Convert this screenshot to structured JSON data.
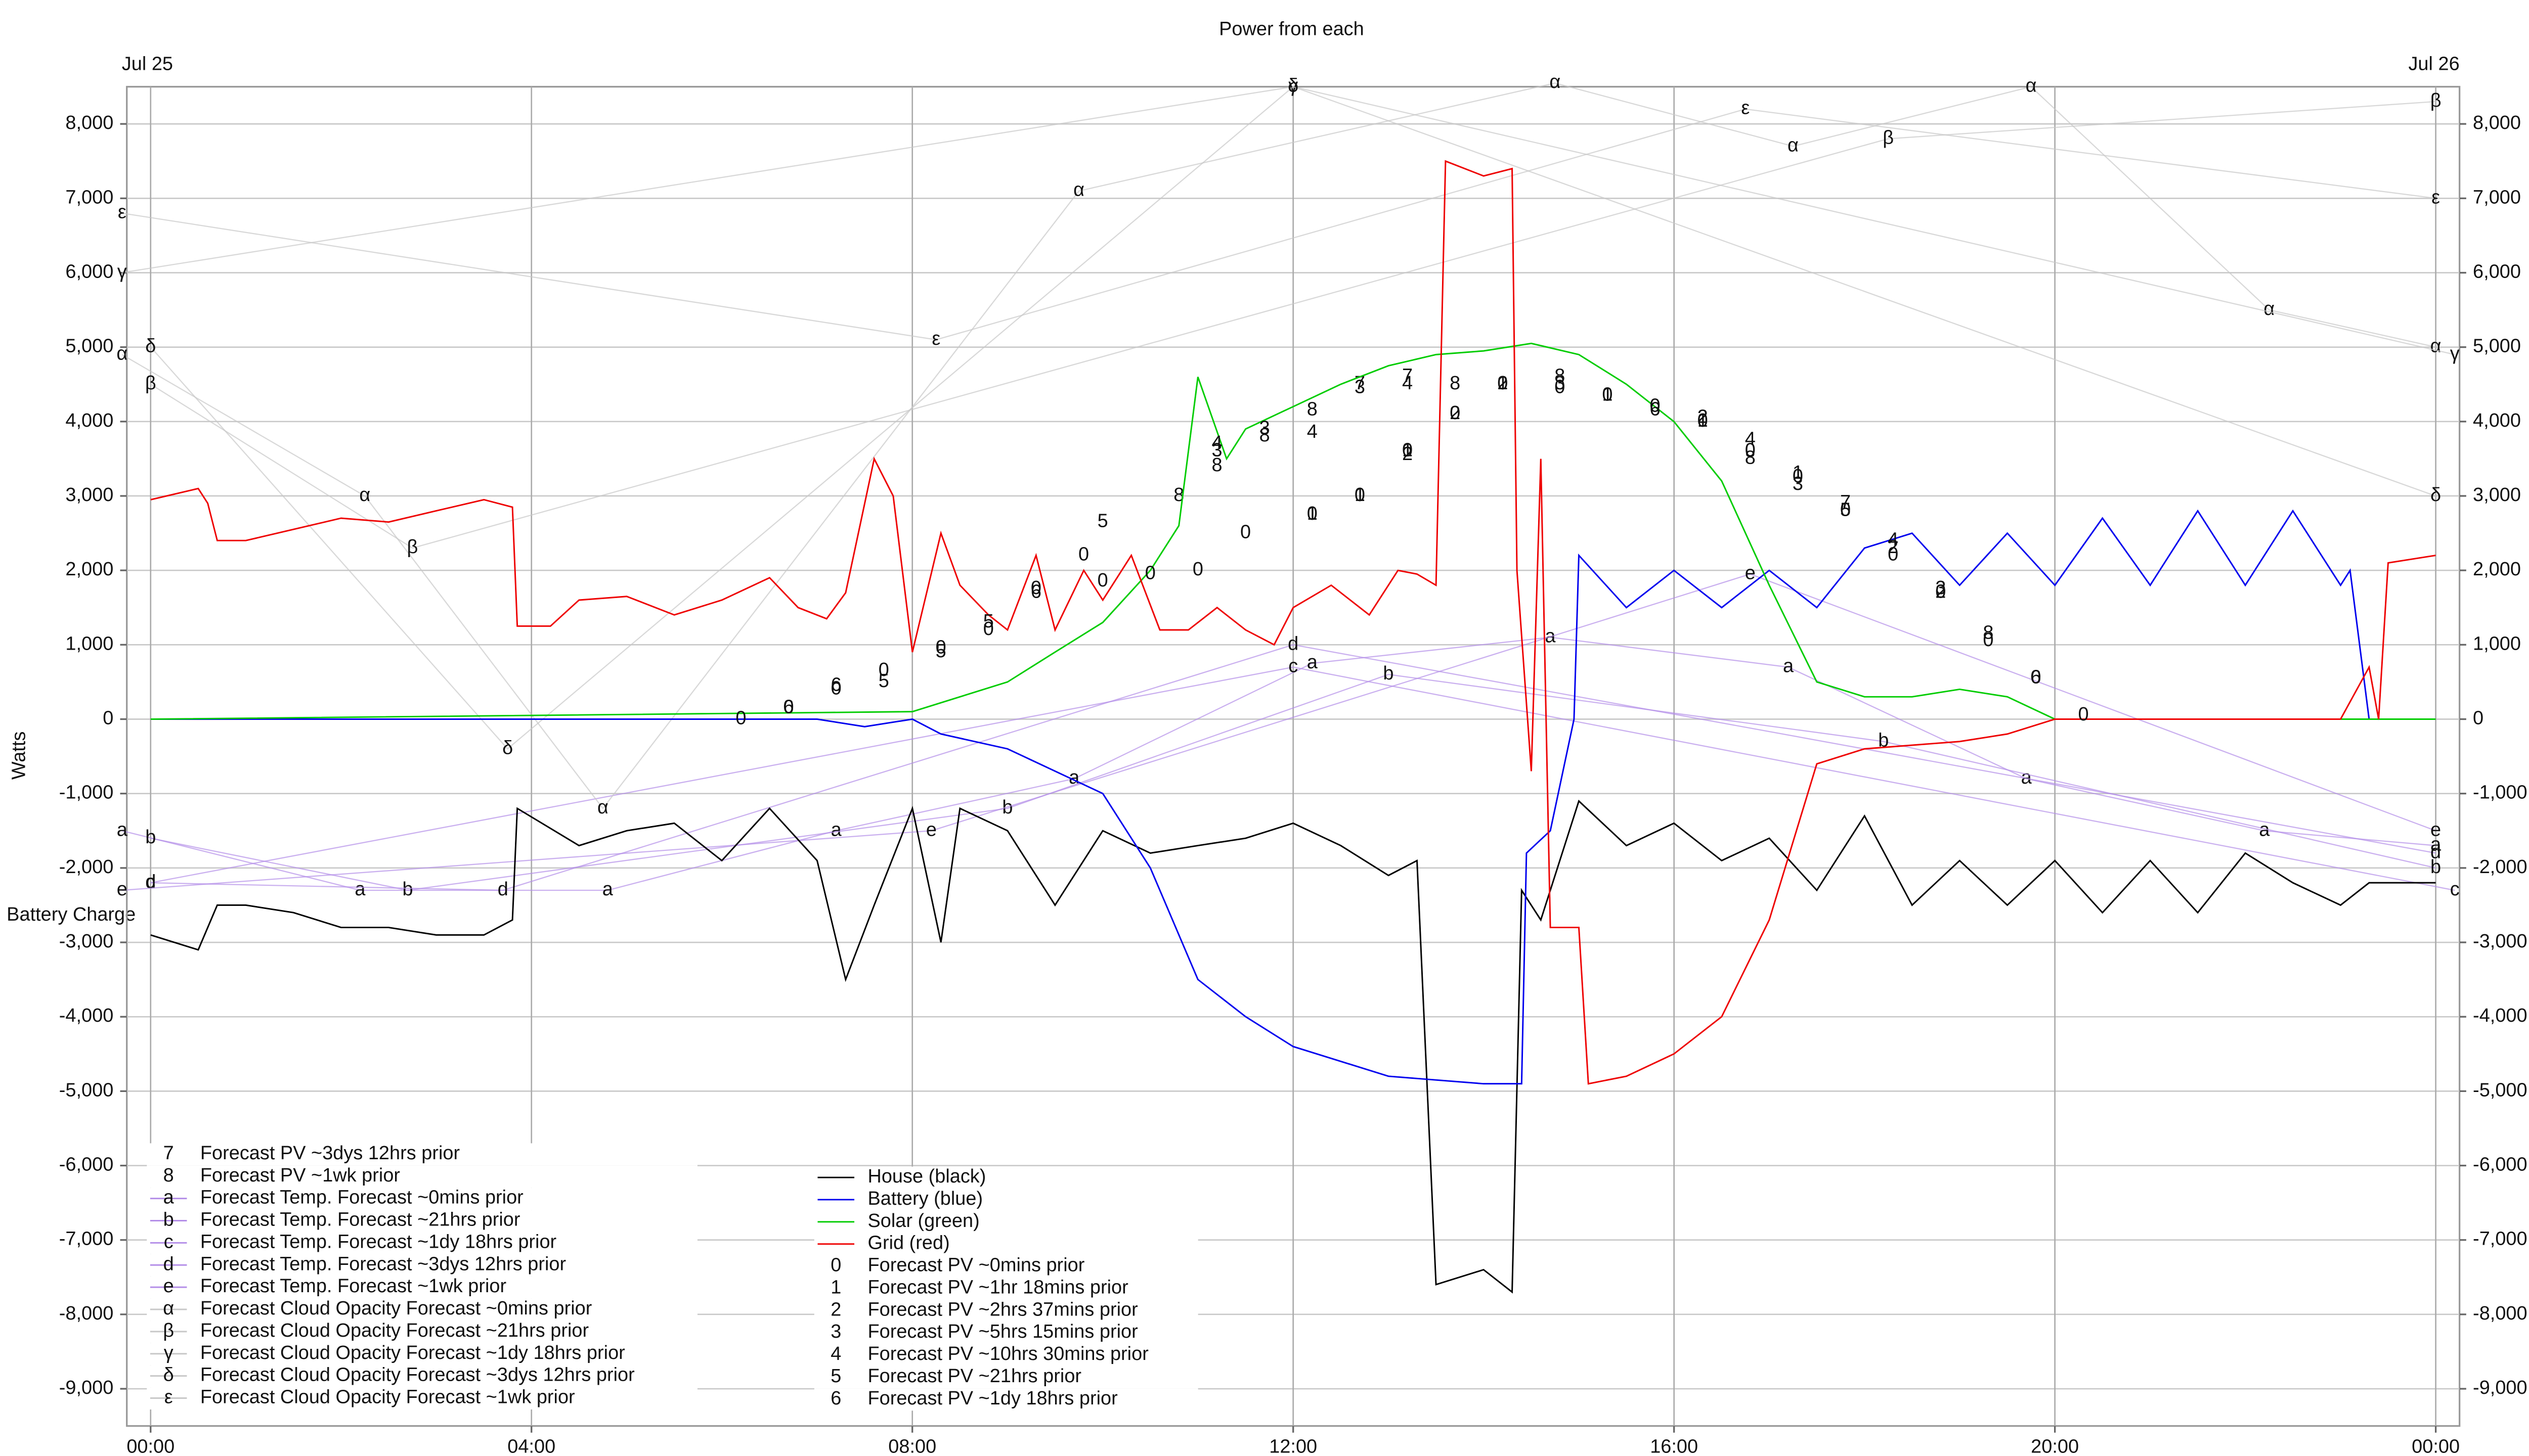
{
  "chart_data": {
    "type": "line",
    "title": "Power from each",
    "y_label": "Watts",
    "date_labels": [
      "Jul 25",
      "Jul 26"
    ],
    "annotation": "Battery Charge",
    "grid": true,
    "xlim": [
      -0.25,
      24.25
    ],
    "xticks": [
      {
        "value": 0,
        "label": "00:00"
      },
      {
        "value": 4,
        "label": "04:00"
      },
      {
        "value": 8,
        "label": "08:00"
      },
      {
        "value": 12,
        "label": "12:00"
      },
      {
        "value": 16,
        "label": "16:00"
      },
      {
        "value": 20,
        "label": "20:00"
      },
      {
        "value": 24,
        "label": "00:00"
      }
    ],
    "ylim": [
      -9500,
      8500
    ],
    "yticks": [
      {
        "value": -9000,
        "label": "-9,000"
      },
      {
        "value": -8000,
        "label": "-8,000"
      },
      {
        "value": -7000,
        "label": "-7,000"
      },
      {
        "value": -6000,
        "label": "-6,000"
      },
      {
        "value": -5000,
        "label": "-5,000"
      },
      {
        "value": -4000,
        "label": "-4,000"
      },
      {
        "value": -3000,
        "label": "-3,000"
      },
      {
        "value": -2000,
        "label": "-2,000"
      },
      {
        "value": -1000,
        "label": "-1,000"
      },
      0,
      {
        "value": 1000,
        "label": "1,000"
      },
      {
        "value": 2000,
        "label": "2,000"
      },
      {
        "value": 3000,
        "label": "3,000"
      },
      {
        "value": 4000,
        "label": "4,000"
      },
      {
        "value": 5000,
        "label": "5,000"
      },
      {
        "value": 6000,
        "label": "6,000"
      },
      {
        "value": 7000,
        "label": "7,000"
      },
      {
        "value": 8000,
        "label": "8,000"
      }
    ],
    "series": [
      {
        "name": "Forecast PV ~3dys 12hrs prior",
        "marker": "7",
        "color": "#000000",
        "line": false,
        "x": [
          12.7,
          13.2,
          17.8
        ],
        "values": [
          4500,
          4600,
          2900
        ]
      },
      {
        "name": "Forecast PV ~1wk prior",
        "marker": "8",
        "color": "#000000",
        "line": false,
        "x": [
          10.8,
          11.2,
          11.7,
          12.2,
          13.7,
          14.8,
          16.8,
          19.3
        ],
        "values": [
          3000,
          3400,
          3800,
          4150,
          4500,
          4600,
          3500,
          1150
        ]
      },
      {
        "name": "Forecast Temp. Forecast ~0mins prior",
        "marker": "a",
        "color": "#b48ee8",
        "line": true,
        "x": [
          -0.3,
          2.2,
          4.8,
          7.2,
          9.7,
          12.2,
          14.7,
          17.2,
          19.7,
          22.2,
          24
        ],
        "values": [
          -1500,
          -2300,
          -2300,
          -1500,
          -800,
          750,
          1100,
          700,
          -800,
          -1500,
          -1700
        ]
      },
      {
        "name": "Forecast Temp. Forecast ~21hrs prior",
        "marker": "b",
        "color": "#b48ee8",
        "line": true,
        "x": [
          0,
          2.7,
          9,
          13,
          18.2,
          24
        ],
        "values": [
          -1600,
          -2300,
          -1200,
          600,
          -300,
          -2000
        ]
      },
      {
        "name": "Forecast Temp. Forecast ~1dy 18hrs prior",
        "marker": "c",
        "color": "#b48ee8",
        "line": true,
        "x": [
          0,
          12,
          24.2
        ],
        "values": [
          -2200,
          700,
          -2300
        ]
      },
      {
        "name": "Forecast Temp. Forecast ~3dys 12hrs prior",
        "marker": "d",
        "color": "#b48ee8",
        "line": true,
        "x": [
          0,
          3.7,
          12,
          24
        ],
        "values": [
          -2200,
          -2300,
          1000,
          -1800
        ]
      },
      {
        "name": "Forecast Temp. Forecast ~1wk prior",
        "marker": "e",
        "color": "#b48ee8",
        "line": true,
        "x": [
          -0.3,
          8.2,
          16.8,
          24
        ],
        "values": [
          -2300,
          -1500,
          1950,
          -1500
        ]
      },
      {
        "name": "Forecast Cloud Opacity Forecast ~0mins prior",
        "marker": "α",
        "color": "#c8c8c8",
        "line": true,
        "x": [
          -0.3,
          2.25,
          4.75,
          9.75,
          14.75,
          17.25,
          19.75,
          22.25,
          24
        ],
        "values": [
          4900,
          3000,
          -1200,
          7100,
          8550,
          7700,
          8500,
          5500,
          5000
        ]
      },
      {
        "name": "Forecast Cloud Opacity Forecast ~21hrs prior",
        "marker": "β",
        "color": "#c8c8c8",
        "line": true,
        "x": [
          0,
          2.75,
          18.25,
          24
        ],
        "values": [
          4500,
          2300,
          7800,
          8300
        ]
      },
      {
        "name": "Forecast Cloud Opacity Forecast ~1dy 18hrs prior",
        "marker": "γ",
        "color": "#c8c8c8",
        "line": true,
        "x": [
          -0.3,
          12,
          24.2
        ],
        "values": [
          6000,
          8500,
          4900
        ]
      },
      {
        "name": "Forecast Cloud Opacity Forecast ~3dys 12hrs prior",
        "marker": "δ",
        "color": "#c8c8c8",
        "line": true,
        "x": [
          0,
          3.75,
          12,
          24
        ],
        "values": [
          5000,
          -400,
          8500,
          3000
        ]
      },
      {
        "name": "Forecast Cloud Opacity Forecast ~1wk prior",
        "marker": "ε",
        "color": "#c8c8c8",
        "line": true,
        "x": [
          -0.3,
          8.25,
          16.75,
          24
        ],
        "values": [
          6800,
          5100,
          8200,
          7000
        ]
      },
      {
        "name": "House (black)",
        "color": "#000000",
        "line": true,
        "x": [
          0,
          0.5,
          0.7,
          1,
          1.5,
          2,
          2.5,
          3,
          3.5,
          3.8,
          3.85,
          4.5,
          5,
          5.5,
          6,
          6.5,
          7,
          7.3,
          7.6,
          8,
          8.3,
          8.5,
          9,
          9.5,
          10,
          10.5,
          11,
          11.5,
          12,
          12.5,
          13,
          13.3,
          13.5,
          14,
          14.3,
          14.4,
          14.6,
          15,
          15.5,
          16,
          16.5,
          17,
          17.5,
          18,
          18.5,
          19,
          19.5,
          20,
          20.5,
          21,
          21.5,
          22,
          22.5,
          23,
          23.3,
          24
        ],
        "values": [
          -2900,
          -3100,
          -2500,
          -2500,
          -2600,
          -2800,
          -2800,
          -2900,
          -2900,
          -2700,
          -1200,
          -1700,
          -1500,
          -1400,
          -1900,
          -1200,
          -1900,
          -3500,
          -2500,
          -1200,
          -3000,
          -1200,
          -1500,
          -2500,
          -1500,
          -1800,
          -1700,
          -1600,
          -1400,
          -1700,
          -2100,
          -1900,
          -7600,
          -7400,
          -7700,
          -2300,
          -2700,
          -1100,
          -1700,
          -1400,
          -1900,
          -1600,
          -2300,
          -1300,
          -2500,
          -1900,
          -2500,
          -1900,
          -2600,
          -1900,
          -2600,
          -1800,
          -2200,
          -2500,
          -2200,
          -2200
        ]
      },
      {
        "name": "Battery (blue)",
        "color": "#0000ee",
        "line": true,
        "x": [
          0,
          7,
          7.5,
          8,
          8.3,
          9,
          10,
          10.5,
          11,
          11.5,
          12,
          13,
          14,
          14.4,
          14.45,
          14.7,
          14.95,
          15,
          15.5,
          16,
          16.5,
          17,
          17.5,
          18,
          18.5,
          19,
          19.5,
          20,
          20.5,
          21,
          21.5,
          22,
          22.5,
          23,
          23.1,
          23.3,
          24
        ],
        "values": [
          0,
          0,
          -100,
          0,
          -200,
          -400,
          -1000,
          -2000,
          -3500,
          -4000,
          -4400,
          -4800,
          -4900,
          -4900,
          -1800,
          -1500,
          0,
          2200,
          1500,
          2000,
          1500,
          2000,
          1500,
          2300,
          2500,
          1800,
          2500,
          1800,
          2700,
          1800,
          2800,
          1800,
          2800,
          1800,
          2000,
          0,
          0
        ]
      },
      {
        "name": "Solar (green)",
        "color": "#00cc00",
        "line": true,
        "x": [
          0,
          8,
          8.5,
          9,
          9.5,
          10,
          10.5,
          10.8,
          11,
          11.3,
          11.5,
          12,
          12.5,
          13,
          13.5,
          14,
          14.5,
          15,
          15.5,
          16,
          16.5,
          17,
          17.5,
          18,
          18.5,
          19,
          19.5,
          20,
          24
        ],
        "values": [
          0,
          100,
          300,
          500,
          900,
          1300,
          2000,
          2600,
          4600,
          3500,
          3900,
          4200,
          4500,
          4750,
          4900,
          4950,
          5050,
          4900,
          4500,
          4000,
          3200,
          1800,
          500,
          300,
          300,
          400,
          300,
          0,
          0
        ]
      },
      {
        "name": "Grid (red)",
        "color": "#ee0000",
        "line": true,
        "x": [
          0,
          0.5,
          0.6,
          0.7,
          1,
          1.5,
          2,
          2.5,
          3,
          3.5,
          3.8,
          3.85,
          4.2,
          4.5,
          5,
          5.5,
          6,
          6.5,
          6.8,
          7.1,
          7.3,
          7.6,
          7.8,
          8,
          8.3,
          8.5,
          8.8,
          9,
          9.3,
          9.5,
          9.8,
          10,
          10.3,
          10.6,
          10.9,
          11.2,
          11.5,
          11.8,
          12,
          12.4,
          12.8,
          13.1,
          13.3,
          13.5,
          13.6,
          14,
          14.3,
          14.35,
          14.5,
          14.6,
          14.7,
          15,
          15.1,
          15.5,
          16,
          16.5,
          17,
          17.5,
          18,
          18.5,
          19,
          19.5,
          20,
          21,
          22,
          23,
          23.3,
          23.4,
          23.5,
          24
        ],
        "values": [
          2950,
          3100,
          2900,
          2400,
          2400,
          2550,
          2700,
          2650,
          2800,
          2950,
          2850,
          1250,
          1250,
          1600,
          1650,
          1400,
          1600,
          1900,
          1500,
          1350,
          1700,
          3500,
          3000,
          900,
          2500,
          1800,
          1400,
          1200,
          2200,
          1200,
          2000,
          1600,
          2200,
          1200,
          1200,
          1500,
          1200,
          1000,
          1500,
          1800,
          1400,
          2000,
          1950,
          1800,
          7500,
          7300,
          7400,
          2000,
          -700,
          3500,
          -2800,
          -2800,
          -4900,
          -4800,
          -4500,
          -4000,
          -2700,
          -600,
          -400,
          -350,
          -300,
          -200,
          0,
          0,
          0,
          0,
          700,
          0,
          2100,
          2200
        ]
      },
      {
        "name": "Forecast PV ~0mins prior",
        "marker": "0",
        "color": "#000000",
        "line": false,
        "x": [
          6.2,
          6.7,
          7.2,
          7.7,
          8.3,
          8.8,
          9.3,
          9.8,
          10.0,
          10.5,
          11,
          11.5,
          12.2,
          12.7,
          13.2,
          13.7,
          14.2,
          14.8,
          15.3,
          15.8,
          16.3,
          16.8,
          17.3,
          17.8,
          18.3,
          18.8,
          19.3,
          19.8,
          20.3
        ],
        "values": [
          0,
          150,
          400,
          650,
          950,
          1200,
          1750,
          2200,
          1850,
          1950,
          2000,
          2500,
          2750,
          3000,
          3600,
          4100,
          4500,
          4450,
          4350,
          4200,
          4000,
          3600,
          3250,
          2800,
          2200,
          1700,
          1050,
          550,
          50
        ]
      },
      {
        "name": "Forecast PV ~1hr 18mins prior",
        "marker": "1",
        "color": "#000000",
        "line": false,
        "x": [
          12.2,
          12.7,
          13.2,
          14.2,
          15.3,
          16.3,
          17.3
        ],
        "values": [
          2750,
          3000,
          3600,
          4500,
          4350,
          4000,
          3300
        ]
      },
      {
        "name": "Forecast PV ~2hrs 37mins prior",
        "marker": "2",
        "color": "#000000",
        "line": false,
        "x": [
          13.2,
          13.7,
          14.2,
          16.3,
          18.3,
          18.8
        ],
        "values": [
          3550,
          4100,
          4500,
          4050,
          2300,
          1700
        ]
      },
      {
        "name": "Forecast PV ~5hrs 15mins prior",
        "marker": "3",
        "color": "#000000",
        "line": false,
        "x": [
          11.2,
          11.7,
          12.7,
          14.8,
          17.3,
          18.8
        ],
        "values": [
          3600,
          3900,
          4450,
          4500,
          3150,
          1750
        ]
      },
      {
        "name": "Forecast PV ~10hrs 30mins prior",
        "marker": "4",
        "color": "#000000",
        "line": false,
        "x": [
          11.2,
          12.2,
          13.2,
          16.8,
          18.3
        ],
        "values": [
          3700,
          3850,
          4500,
          3750,
          2400
        ]
      },
      {
        "name": "Forecast PV ~21hrs prior",
        "marker": "5",
        "color": "#000000",
        "line": false,
        "x": [
          7.7,
          8.3,
          8.8,
          10.0,
          17.8
        ],
        "values": [
          500,
          900,
          1300,
          2650,
          2800
        ]
      },
      {
        "name": "Forecast PV ~1dy 18hrs prior",
        "marker": "6",
        "color": "#000000",
        "line": false,
        "x": [
          6.7,
          7.2,
          9.3,
          15.8,
          19.8
        ],
        "values": [
          150,
          450,
          1700,
          4150,
          550
        ]
      }
    ]
  }
}
